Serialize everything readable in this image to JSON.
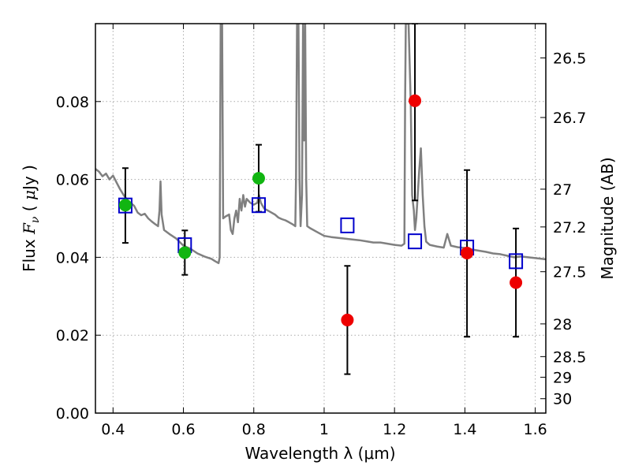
{
  "chart_data": {
    "type": "scatter",
    "xlabel": "Wavelength  λ (μm)",
    "ylabel": "Flux  F_ν  ( μJy )",
    "ylabel_parts": {
      "pre": "Flux  ",
      "var": "F",
      "sub": "ν",
      "mid": "  ( ",
      "mu": "μ",
      "post": "Jy )"
    },
    "y2label": "Magnitude (AB)",
    "xlim": [
      0.35,
      1.63
    ],
    "ylim": [
      0.0,
      0.1
    ],
    "grid": true,
    "x_ticks": [
      {
        "value": 0.4,
        "label": "0.4"
      },
      {
        "value": 0.6,
        "label": "0.6"
      },
      {
        "value": 0.8,
        "label": "0.8"
      },
      {
        "value": 1.0,
        "label": "1"
      },
      {
        "value": 1.2,
        "label": "1.2"
      },
      {
        "value": 1.4,
        "label": "1.4"
      },
      {
        "value": 1.6,
        "label": "1.6"
      }
    ],
    "y_ticks": [
      {
        "value": 0.0,
        "label": "0.00"
      },
      {
        "value": 0.02,
        "label": "0.02"
      },
      {
        "value": 0.04,
        "label": "0.04"
      },
      {
        "value": 0.06,
        "label": "0.06"
      },
      {
        "value": 0.08,
        "label": "0.08"
      }
    ],
    "mag_ticks": [
      {
        "flux": 0.0912,
        "label": "26.5"
      },
      {
        "flux": 0.0759,
        "label": "26.7"
      },
      {
        "flux": 0.0575,
        "label": "27"
      },
      {
        "flux": 0.0478,
        "label": "27.2"
      },
      {
        "flux": 0.0363,
        "label": "27.5"
      },
      {
        "flux": 0.0229,
        "label": "28"
      },
      {
        "flux": 0.0145,
        "label": "28.5"
      },
      {
        "flux": 0.0092,
        "label": "29"
      },
      {
        "flux": 0.0037,
        "label": "30"
      }
    ],
    "model_flux": [
      {
        "x": 0.54,
        "y": 0.0595
      }
    ],
    "detections_green": [
      {
        "x": 0.435,
        "y": 0.0534,
        "yerr_low": 0.0437,
        "yerr_high": 0.0629
      },
      {
        "x": 0.604,
        "y": 0.0412,
        "yerr_low": 0.0355,
        "yerr_high": 0.0469
      },
      {
        "x": 0.814,
        "y": 0.0603,
        "yerr_low": 0.0517,
        "yerr_high": 0.0689
      }
    ],
    "detections_red": [
      {
        "x": 1.066,
        "y": 0.0239,
        "yerr_low": 0.01,
        "yerr_high": 0.0378
      },
      {
        "x": 1.258,
        "y": 0.0802,
        "yerr_low": 0.0546,
        "yerr_high": 0.1
      },
      {
        "x": 1.406,
        "y": 0.0411,
        "yerr_low": 0.0196,
        "yerr_high": 0.0624
      },
      {
        "x": 1.545,
        "y": 0.0335,
        "yerr_low": 0.0196,
        "yerr_high": 0.0474
      }
    ],
    "model_photometry": [
      {
        "x": 0.435,
        "y": 0.0533
      },
      {
        "x": 0.604,
        "y": 0.0431
      },
      {
        "x": 0.814,
        "y": 0.0534
      },
      {
        "x": 1.066,
        "y": 0.0482
      },
      {
        "x": 1.258,
        "y": 0.0441
      },
      {
        "x": 1.406,
        "y": 0.0425
      },
      {
        "x": 1.545,
        "y": 0.039
      }
    ],
    "spectrum": [
      [
        0.35,
        0.0627
      ],
      [
        0.36,
        0.062
      ],
      [
        0.37,
        0.0608
      ],
      [
        0.38,
        0.0615
      ],
      [
        0.39,
        0.06
      ],
      [
        0.4,
        0.061
      ],
      [
        0.41,
        0.0592
      ],
      [
        0.42,
        0.0575
      ],
      [
        0.43,
        0.056
      ],
      [
        0.44,
        0.0548
      ],
      [
        0.45,
        0.054
      ],
      [
        0.46,
        0.0532
      ],
      [
        0.47,
        0.0515
      ],
      [
        0.48,
        0.0508
      ],
      [
        0.49,
        0.0512
      ],
      [
        0.5,
        0.05
      ],
      [
        0.51,
        0.0492
      ],
      [
        0.52,
        0.0485
      ],
      [
        0.528,
        0.048
      ],
      [
        0.532,
        0.052
      ],
      [
        0.535,
        0.0595
      ],
      [
        0.538,
        0.051
      ],
      [
        0.545,
        0.047
      ],
      [
        0.56,
        0.046
      ],
      [
        0.58,
        0.0448
      ],
      [
        0.6,
        0.043
      ],
      [
        0.62,
        0.0422
      ],
      [
        0.64,
        0.041
      ],
      [
        0.66,
        0.0402
      ],
      [
        0.68,
        0.0396
      ],
      [
        0.69,
        0.039
      ],
      [
        0.7,
        0.0385
      ],
      [
        0.703,
        0.04
      ],
      [
        0.706,
        0.1
      ],
      [
        0.71,
        0.1
      ],
      [
        0.713,
        0.05
      ],
      [
        0.72,
        0.0505
      ],
      [
        0.73,
        0.051
      ],
      [
        0.735,
        0.047
      ],
      [
        0.74,
        0.046
      ],
      [
        0.745,
        0.05
      ],
      [
        0.75,
        0.052
      ],
      [
        0.755,
        0.049
      ],
      [
        0.76,
        0.055
      ],
      [
        0.765,
        0.052
      ],
      [
        0.77,
        0.056
      ],
      [
        0.775,
        0.053
      ],
      [
        0.78,
        0.055
      ],
      [
        0.79,
        0.054
      ],
      [
        0.8,
        0.0535
      ],
      [
        0.81,
        0.054
      ],
      [
        0.815,
        0.056
      ],
      [
        0.82,
        0.054
      ],
      [
        0.83,
        0.0525
      ],
      [
        0.84,
        0.052
      ],
      [
        0.85,
        0.0515
      ],
      [
        0.86,
        0.051
      ],
      [
        0.87,
        0.0502
      ],
      [
        0.88,
        0.0498
      ],
      [
        0.89,
        0.0495
      ],
      [
        0.9,
        0.049
      ],
      [
        0.91,
        0.0485
      ],
      [
        0.918,
        0.048
      ],
      [
        0.92,
        0.06
      ],
      [
        0.923,
        0.1
      ],
      [
        0.927,
        0.1
      ],
      [
        0.93,
        0.06
      ],
      [
        0.933,
        0.048
      ],
      [
        0.937,
        0.056
      ],
      [
        0.94,
        0.1
      ],
      [
        0.943,
        0.07
      ],
      [
        0.946,
        0.1
      ],
      [
        0.949,
        0.06
      ],
      [
        0.952,
        0.048
      ],
      [
        0.96,
        0.0475
      ],
      [
        0.98,
        0.0465
      ],
      [
        1.0,
        0.0455
      ],
      [
        1.02,
        0.0452
      ],
      [
        1.04,
        0.045
      ],
      [
        1.06,
        0.0448
      ],
      [
        1.08,
        0.0446
      ],
      [
        1.1,
        0.0444
      ],
      [
        1.12,
        0.0441
      ],
      [
        1.14,
        0.0438
      ],
      [
        1.16,
        0.0438
      ],
      [
        1.18,
        0.0435
      ],
      [
        1.2,
        0.0432
      ],
      [
        1.22,
        0.043
      ],
      [
        1.228,
        0.0435
      ],
      [
        1.23,
        0.08
      ],
      [
        1.232,
        0.1
      ],
      [
        1.24,
        0.1
      ],
      [
        1.246,
        0.08
      ],
      [
        1.25,
        0.056
      ],
      [
        1.255,
        0.052
      ],
      [
        1.258,
        0.047
      ],
      [
        1.262,
        0.05
      ],
      [
        1.266,
        0.056
      ],
      [
        1.27,
        0.062
      ],
      [
        1.275,
        0.068
      ],
      [
        1.28,
        0.056
      ],
      [
        1.285,
        0.048
      ],
      [
        1.29,
        0.044
      ],
      [
        1.3,
        0.0432
      ],
      [
        1.32,
        0.0428
      ],
      [
        1.34,
        0.0425
      ],
      [
        1.35,
        0.046
      ],
      [
        1.36,
        0.043
      ],
      [
        1.38,
        0.0426
      ],
      [
        1.4,
        0.0424
      ],
      [
        1.42,
        0.042
      ],
      [
        1.44,
        0.0417
      ],
      [
        1.46,
        0.0414
      ],
      [
        1.48,
        0.041
      ],
      [
        1.5,
        0.0408
      ],
      [
        1.52,
        0.0404
      ],
      [
        1.54,
        0.04
      ],
      [
        1.56,
        0.0402
      ],
      [
        1.58,
        0.04
      ],
      [
        1.6,
        0.0398
      ],
      [
        1.63,
        0.0395
      ]
    ],
    "colors": {
      "spectrum": "#808080",
      "detections_green": "#11b511",
      "detections_red": "#ee0000",
      "model_photometry": "#0000cc",
      "grid": "#aaaaaa",
      "errorbar": "#000000"
    }
  }
}
